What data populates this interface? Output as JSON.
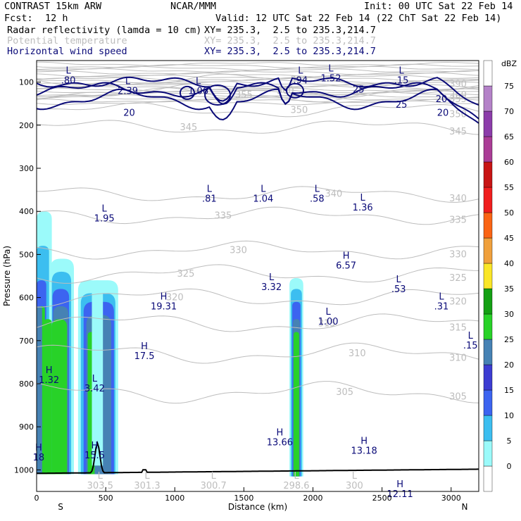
{
  "header": {
    "model": "CONTRAST 15km ARW",
    "org": "NCAR/MMM",
    "init": "Init: 00 UTC Sat 22 Feb 14",
    "fcst_label": "Fcst:",
    "fcst_value": "12 h",
    "valid": "Valid: 12 UTC Sat 22 Feb 14 (22 ChT Sat 22 Feb 14)",
    "fields": [
      {
        "name": "Radar reflectivity (lamda = 10 cm)",
        "xy": "XY= 235.3,  2.5 to 235.3,214.7",
        "color": "#000000"
      },
      {
        "name": "Potential temperature",
        "xy": "XY= 235.3,  2.5 to 235.3,214.7",
        "color": "#b4b4b4"
      },
      {
        "name": "Horizontal wind speed",
        "xy": "XY= 235.3,  2.5 to 235.3,214.7",
        "color": "#0a0a78"
      }
    ]
  },
  "chart_data": {
    "type": "cross-section",
    "xlabel": "Distance (km)",
    "ylabel": "Pressure (hPa)",
    "xlim": [
      0,
      3200
    ],
    "ylim": [
      1050,
      50
    ],
    "xticks": [
      0,
      500,
      1000,
      1500,
      2000,
      2500,
      3000
    ],
    "yticks": [
      100,
      200,
      300,
      400,
      500,
      600,
      700,
      800,
      900,
      1000
    ],
    "endpoints": {
      "left": "S",
      "right": "N"
    },
    "colorbar": {
      "unit": "dBZ",
      "levels": [
        0,
        5,
        10,
        15,
        20,
        25,
        30,
        35,
        40,
        45,
        50,
        55,
        60,
        65,
        70,
        75
      ],
      "colors": [
        "#ffffff",
        "#9bfafa",
        "#3cbef0",
        "#3c64f0",
        "#3c3cd2",
        "#4682b4",
        "#28d228",
        "#14a014",
        "#fae628",
        "#f0a03c",
        "#fa6414",
        "#f01e1e",
        "#c81414",
        "#aa3c96",
        "#8c3caa",
        "#b482c8",
        "#ffffff"
      ]
    },
    "theta_contours": [
      {
        "label": "390",
        "p": 95
      },
      {
        "label": "360",
        "p": 120
      },
      {
        "label": "355",
        "p": 130
      },
      {
        "label": "350",
        "p": 165
      },
      {
        "label": "345",
        "p": 205
      },
      {
        "label": "340",
        "p": 360
      },
      {
        "label": "335",
        "p": 410
      },
      {
        "label": "330",
        "p": 490
      },
      {
        "label": "325",
        "p": 545
      },
      {
        "label": "320",
        "p": 600
      },
      {
        "label": "315",
        "p": 660
      },
      {
        "label": "310",
        "p": 730
      },
      {
        "label": "305",
        "p": 820
      }
    ],
    "wind_contours": [
      {
        "label": "20"
      },
      {
        "label": "25"
      }
    ],
    "lh_labels": [
      {
        "type": "L",
        "value": ".80",
        "x": 230,
        "p": 85
      },
      {
        "type": "L",
        "value": "2.39",
        "x": 660,
        "p": 110
      },
      {
        "type": "L",
        "value": "1.06",
        "x": 1170,
        "p": 110
      },
      {
        "type": "L",
        "value": ".94",
        "x": 1910,
        "p": 85
      },
      {
        "type": "L",
        "value": "1.52",
        "x": 2130,
        "p": 80
      },
      {
        "type": "L",
        "value": ".15",
        "x": 2640,
        "p": 85
      },
      {
        "type": "L",
        "value": ".81",
        "x": 1250,
        "p": 360
      },
      {
        "type": "L",
        "value": "1.04",
        "x": 1640,
        "p": 360
      },
      {
        "type": "L",
        "value": ".58",
        "x": 2030,
        "p": 360
      },
      {
        "type": "L",
        "value": "1.36",
        "x": 2360,
        "p": 380
      },
      {
        "type": "L",
        "value": "1.95",
        "x": 490,
        "p": 405
      },
      {
        "type": "H",
        "value": "6.57",
        "x": 2240,
        "p": 515
      },
      {
        "type": "L",
        "value": "3.32",
        "x": 1700,
        "p": 565
      },
      {
        "type": "L",
        "value": ".53",
        "x": 2620,
        "p": 570
      },
      {
        "type": "H",
        "value": "19.31",
        "x": 920,
        "p": 610
      },
      {
        "type": "L",
        "value": ".31",
        "x": 2930,
        "p": 610
      },
      {
        "type": "L",
        "value": "1.00",
        "x": 2110,
        "p": 645
      },
      {
        "type": "L",
        "value": ".15",
        "x": 3140,
        "p": 700
      },
      {
        "type": "H",
        "value": "17.5",
        "x": 780,
        "p": 725
      },
      {
        "type": "H",
        "value": "1.32",
        "x": 90,
        "p": 780
      },
      {
        "type": "L",
        "value": "3.42",
        "x": 420,
        "p": 800
      },
      {
        "type": "H",
        "value": "13.66",
        "x": 1760,
        "p": 925
      },
      {
        "type": "H",
        "value": "13.18",
        "x": 2370,
        "p": 945
      },
      {
        "type": "H",
        "value": "15.5",
        "x": 420,
        "p": 955
      },
      {
        "type": "H",
        "value": "12.11",
        "x": 2630,
        "p": 1045
      },
      {
        "type": "H",
        "value": "18",
        "x": 15,
        "p": 960
      }
    ],
    "surface_labels": [
      {
        "value": "301.3",
        "x": 800
      },
      {
        "value": "300.7",
        "x": 1280
      },
      {
        "value": "298.6",
        "x": 1880
      },
      {
        "value": "300",
        "x": 2300
      },
      {
        "value": "303.5",
        "x": 460
      }
    ]
  }
}
